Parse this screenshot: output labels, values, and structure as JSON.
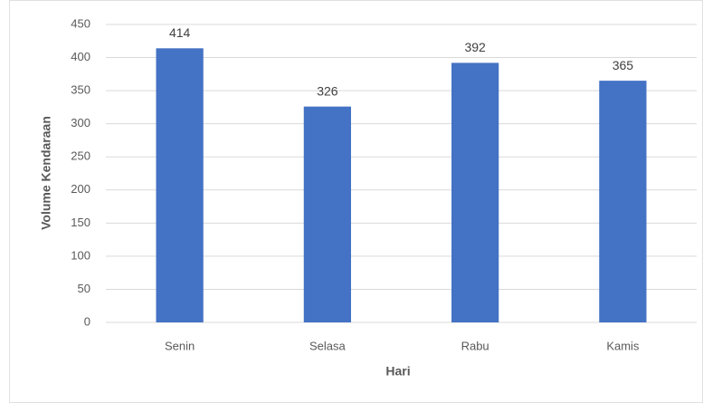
{
  "chart_data": {
    "type": "bar",
    "x_label": "Hari",
    "y_label": "Volume Kendaraan",
    "categories": [
      "Senin",
      "Selasa",
      "Rabu",
      "Kamis"
    ],
    "values": [
      414,
      326,
      392,
      365
    ],
    "color": "#4472c4",
    "ylim": [
      0,
      450
    ],
    "yticks": [
      0,
      50,
      100,
      150,
      200,
      250,
      300,
      350,
      400,
      450
    ],
    "grid": true,
    "data_labels": true
  }
}
